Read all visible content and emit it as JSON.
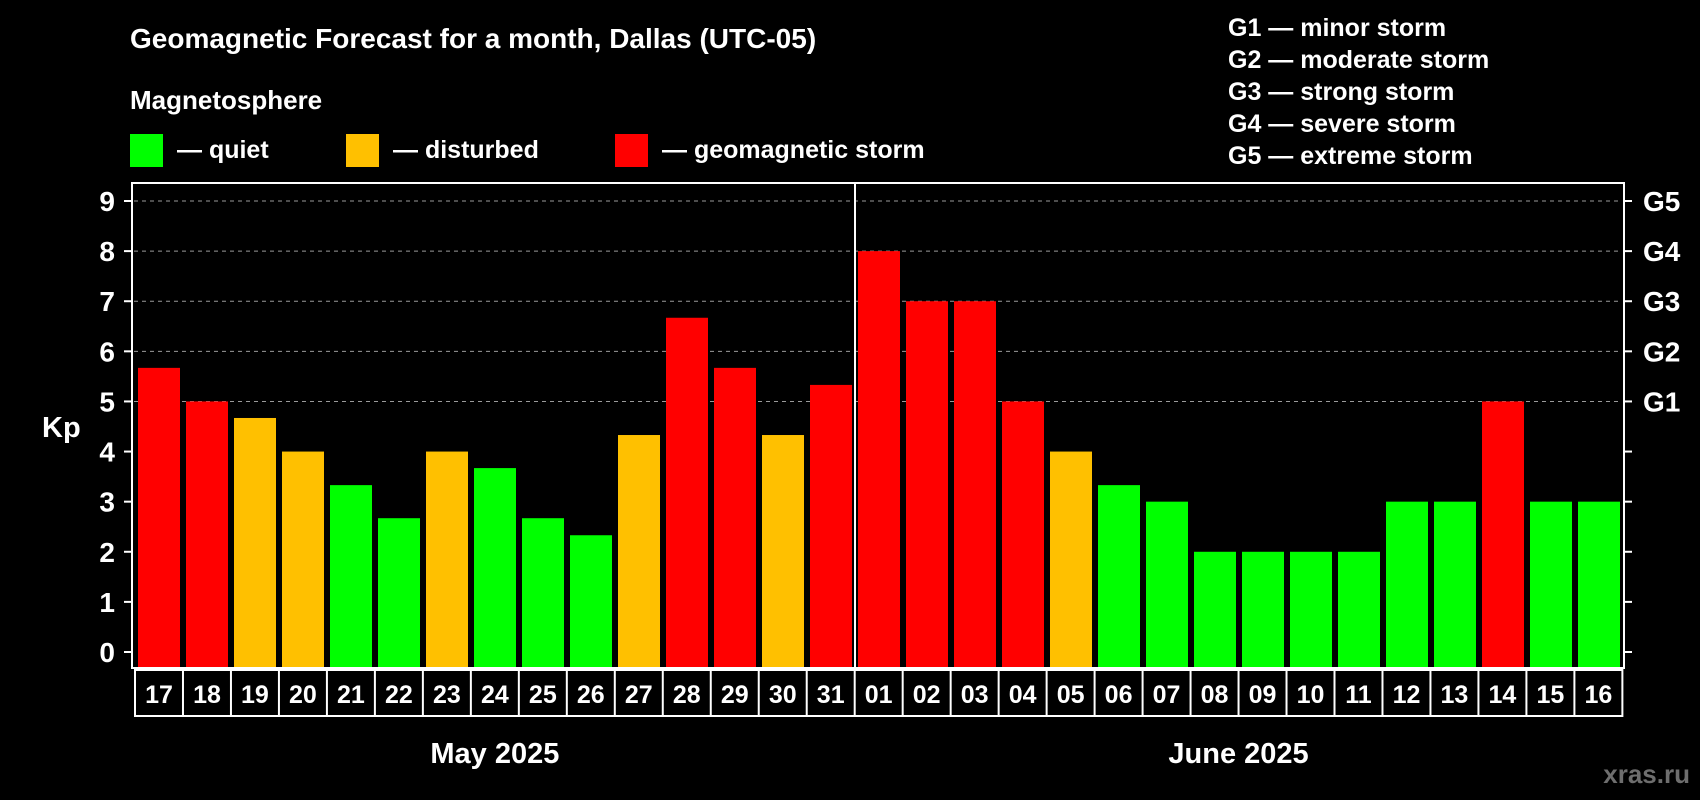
{
  "chart_data": {
    "type": "bar",
    "title": "Geomagnetic Forecast for a month, Dallas (UTC-05)",
    "legend_heading": "Magnetosphere",
    "legend": [
      {
        "label": "— quiet",
        "color": "#00ff00"
      },
      {
        "label": "— disturbed",
        "color": "#ffc000"
      },
      {
        "label": "— geomagnetic storm",
        "color": "#ff0000"
      }
    ],
    "storm_scale": [
      "G1 — minor storm",
      "G2 — moderate storm",
      "G3 — strong storm",
      "G4 — severe storm",
      "G5 — extreme storm"
    ],
    "ylabel": "Kp",
    "ylim": [
      0,
      9
    ],
    "yticks": [
      "0",
      "1",
      "2",
      "3",
      "4",
      "5",
      "6",
      "7",
      "8",
      "9"
    ],
    "right_labels": [
      {
        "value": 5,
        "label": "G1"
      },
      {
        "value": 6,
        "label": "G2"
      },
      {
        "value": 7,
        "label": "G3"
      },
      {
        "value": 8,
        "label": "G4"
      },
      {
        "value": 9,
        "label": "G5"
      }
    ],
    "grid": true,
    "categories": [
      "17",
      "18",
      "19",
      "20",
      "21",
      "22",
      "23",
      "24",
      "25",
      "26",
      "27",
      "28",
      "29",
      "30",
      "31",
      "01",
      "02",
      "03",
      "04",
      "05",
      "06",
      "07",
      "08",
      "09",
      "10",
      "11",
      "12",
      "13",
      "14",
      "15",
      "16"
    ],
    "values": [
      5.67,
      5,
      4.67,
      4,
      3.33,
      2.67,
      4,
      3.67,
      2.67,
      2.33,
      4.33,
      6.67,
      5.67,
      4.33,
      5.33,
      8,
      7,
      7,
      5,
      4,
      3.33,
      3,
      2,
      2,
      2,
      2,
      3,
      3,
      5,
      3,
      3
    ],
    "levels": [
      "storm",
      "storm",
      "disturbed",
      "disturbed",
      "quiet",
      "quiet",
      "disturbed",
      "quiet",
      "quiet",
      "quiet",
      "disturbed",
      "storm",
      "storm",
      "disturbed",
      "storm",
      "storm",
      "storm",
      "storm",
      "storm",
      "disturbed",
      "quiet",
      "quiet",
      "quiet",
      "quiet",
      "quiet",
      "quiet",
      "quiet",
      "quiet",
      "storm",
      "quiet",
      "quiet"
    ],
    "months": [
      {
        "label": "May 2025",
        "start_index": 0,
        "count": 15
      },
      {
        "label": "June 2025",
        "start_index": 15,
        "count": 16
      }
    ],
    "colors": {
      "quiet": "#00ff00",
      "disturbed": "#ffc000",
      "storm": "#ff0000"
    }
  },
  "watermark": "xras.ru"
}
